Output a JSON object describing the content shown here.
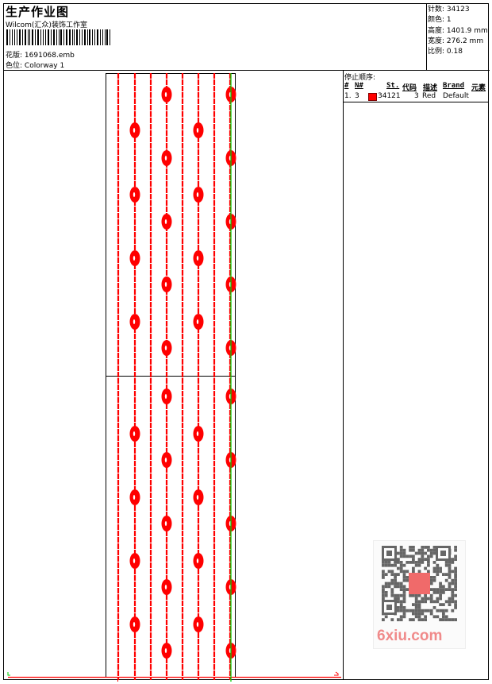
{
  "header": {
    "title": "生产作业图",
    "company": "Wilcom(汇众)装饰工作室",
    "design_label": "花版:",
    "design_value": "1691068.emb",
    "colorway_label": "色位:",
    "colorway_value": "Colorway 1"
  },
  "info": [
    {
      "label": "针数:",
      "value": "34123"
    },
    {
      "label": "颜色:",
      "value": "1"
    },
    {
      "label": "高度:",
      "value": "1401.9 mm"
    },
    {
      "label": "宽度:",
      "value": "276.2 mm"
    },
    {
      "label": "比例:",
      "value": "0.18"
    }
  ],
  "stop_sequence": {
    "title": "停止顺序:",
    "columns": [
      "#",
      "N#",
      "St.",
      "代码",
      "描述",
      "Brand",
      "元素"
    ],
    "rows": [
      {
        "index": "1.",
        "needle": "3",
        "color": "#ff0000",
        "stitches": "34121",
        "code": "3",
        "description": "Red",
        "brand": "Default"
      }
    ]
  },
  "watermark": {
    "text": "6xiu.com"
  },
  "colors": {
    "thread": "#ff0000",
    "guide": "#00cc00"
  }
}
